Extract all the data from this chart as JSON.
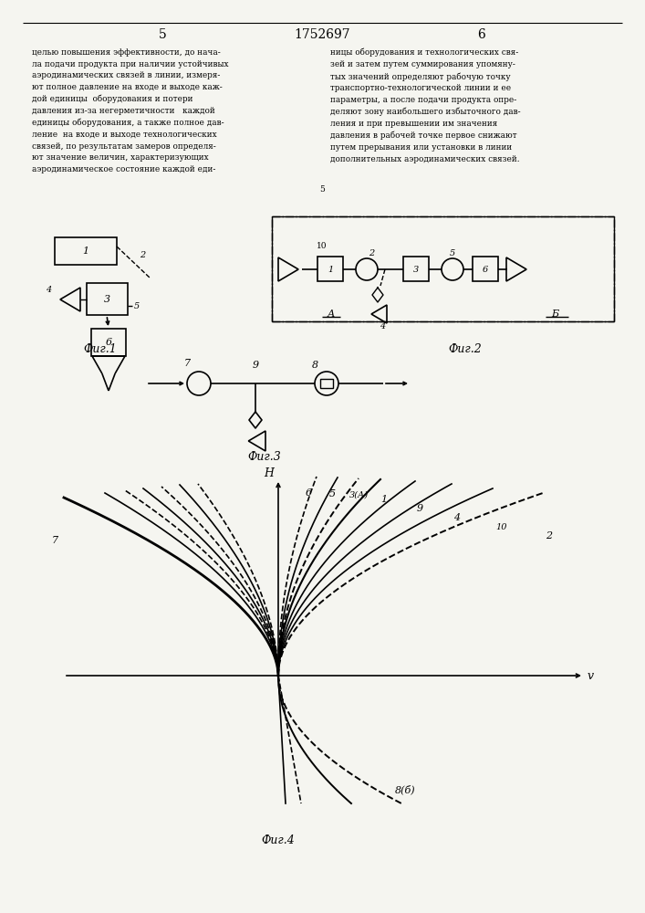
{
  "background_color": "#f5f5f0",
  "title": "1752697",
  "page_left": "5",
  "page_right": "6",
  "fig1_label": "Фиг.1",
  "fig2_label": "Фиг.2",
  "fig3_label": "Фиг.3",
  "fig4_label": "Фиг.4",
  "label_A": "А",
  "label_B": "Б",
  "label_H": "H",
  "label_v": "v",
  "text_left": "целью повышения эффективности, до нача-\nла подачи продукта при наличии устойчивых\nаэродинамических связей в линии, измеря-\nют полное давление на входе и выходе каж-\nдой единицы  оборудования и потери\nдавления из-за негерметичности   каждой\nединицы оборудования, а также полное дав-\nление  на входе и выходе технологических\nсвязей, по результатам замеров определя-\nют значение величин, характеризующих\nаэродинамическое состояние каждой еди-",
  "text_right": "ницы оборудования и технологических свя-\nзей и затем путем суммирования упомяну-\nтых значений определяют рабочую точку\nтранспортно-технологической линии и ее\nпараметры, а после подачи продукта опре-\nделяют зону наибольшего избыточного дав-\nления и при превышении им значения\nдавления в рабочей точке первое снижают\nпутем прерывания или установки в линии\nдополнительных аэродинамических связей.",
  "line_num_5": "5",
  "line_num_10": "10"
}
